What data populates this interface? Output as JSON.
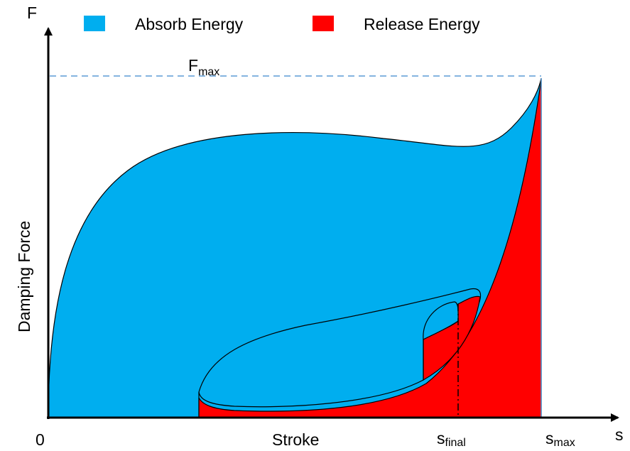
{
  "legend": {
    "items": [
      "Absorb Energy",
      "Release Energy"
    ]
  },
  "axes": {
    "y_symbol": "F",
    "y_label": "Damping Force",
    "origin": "0",
    "x_label": "Stroke",
    "x_symbol": "s"
  },
  "markers": {
    "fmax": {
      "base": "F",
      "sub": "max"
    },
    "sfinal": {
      "base": "s",
      "sub": "final"
    },
    "smax": {
      "base": "s",
      "sub": "max"
    }
  }
}
